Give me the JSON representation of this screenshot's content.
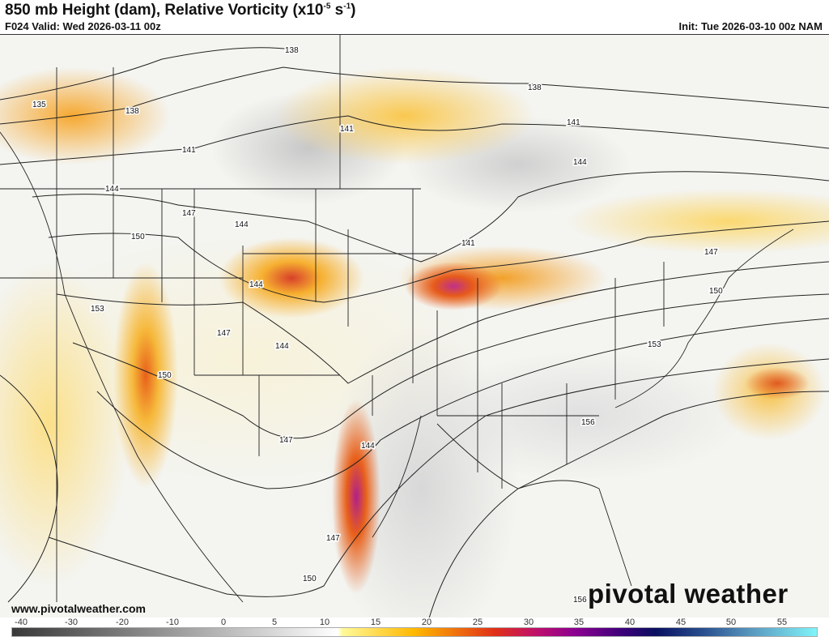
{
  "header": {
    "title": "850 mb Height (dam), Relative Vorticity (x10",
    "title_exp": "-5",
    "title_unit": " s",
    "title_unit_exp": "-1",
    "title_close": ")",
    "valid": "F024 Valid: Wed 2026-03-11 00z",
    "init": "Init: Tue 2026-03-10 00z NAM"
  },
  "map": {
    "contour_field": "850 mb Height (dam)",
    "contour_labels": [
      "135",
      "138",
      "138",
      "138",
      "141",
      "141",
      "141",
      "141",
      "144",
      "144",
      "144",
      "144",
      "144",
      "144",
      "147",
      "147",
      "147",
      "147",
      "147",
      "150",
      "150",
      "150",
      "150",
      "153",
      "153",
      "156",
      "156"
    ]
  },
  "footer": {
    "url": "www.pivotalweather.com",
    "logo": "pivotal weather"
  },
  "colorbar": {
    "ticks": [
      "-40",
      "-30",
      "-20",
      "-10",
      "0",
      "5",
      "10",
      "15",
      "20",
      "25",
      "30",
      "35",
      "40",
      "45",
      "50",
      "55"
    ],
    "colors": {
      "min": "#383838",
      "zero": "#ffffff",
      "low": "#fffa9a",
      "mid": "#ffb800",
      "high": "#e03018",
      "magenta": "#8a0090",
      "navy": "#081060",
      "max": "#80f4fa"
    }
  }
}
